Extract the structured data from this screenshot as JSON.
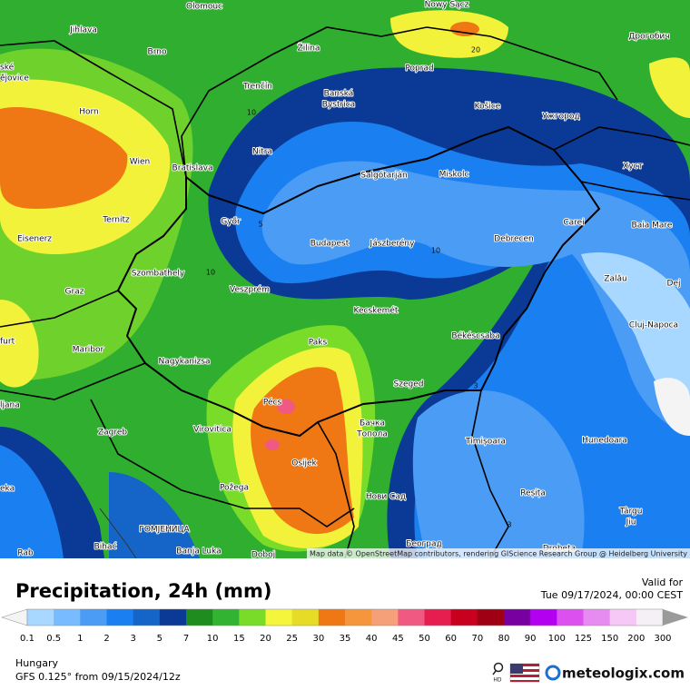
{
  "map": {
    "cities": [
      "Olomouc",
      "Nowy Sącz",
      [
        "ské",
        "ějovice"
      ],
      "Jihlava",
      "Brno",
      "Žilina",
      "Poprad",
      "Дрогобич",
      "Trenčín",
      [
        "Banská",
        "Bystrica"
      ],
      "Košice",
      "Ужгород",
      "Horn",
      "Wien",
      "Bratislava",
      "Nitra",
      "Salgótarján",
      "Miskolc",
      "Хуст",
      "Ternitz",
      "Győr",
      "Carei",
      "Baia Mare",
      "Eisenerz",
      "Budapest",
      "Jászberény",
      "Debrecen",
      "Szombathely",
      "Zalău",
      "Dej",
      "Graz",
      "Veszprém",
      "Kecskemét",
      "Cluj-Napoca",
      "furt",
      "Maribor",
      "Paks",
      "Békéscsaba",
      "Nagykanizsa",
      "Szeged",
      "ljana",
      "Pécs",
      [
        "Бачка",
        "Топола"
      ],
      "Zagreb",
      "Virovitica",
      "Timișoara",
      "Hunedoara",
      "Osijek",
      "eka",
      "Požega",
      "Нови Сад",
      "Reșița",
      [
        "Târgu",
        "Jiu"
      ],
      "ГОМЈЕНИЦА",
      "Bihać",
      "Banja Luka",
      "Doboj",
      "Београд",
      "Drobeta",
      "Rab"
    ],
    "contour_labels": [
      "20",
      "10",
      "5",
      "10",
      "10",
      "3",
      "3"
    ],
    "attribution": "Map data © OpenStreetMap contributors, rendering GIScience Research Group @ Heidelberg University"
  },
  "header": {
    "title": "Precipitation, 24h (mm)",
    "valid_label": "Valid for",
    "valid_time": "Tue 09/17/2024, 00:00 CEST"
  },
  "legend": {
    "colors": [
      "#f4f4f4",
      "#a8d8ff",
      "#78bcff",
      "#4a9cf5",
      "#1a7ff0",
      "#1565c8",
      "#0a3a96",
      "#1e8c1e",
      "#32b432",
      "#78dc28",
      "#f5f53c",
      "#e6dc28",
      "#f07814",
      "#f5963c",
      "#f5a078",
      "#f05a82",
      "#e61e50",
      "#c8001e",
      "#a00014",
      "#7800a0",
      "#b400f0",
      "#dc50f0",
      "#e68cf0",
      "#f5c8f5",
      "#f5f0f5",
      "#d8d8d8",
      "#9a9a9a"
    ],
    "ticks": [
      0.1,
      0.5,
      1,
      2,
      3,
      5,
      7,
      10,
      15,
      20,
      25,
      30,
      35,
      40,
      45,
      50,
      60,
      70,
      80,
      90,
      100,
      125,
      150,
      200,
      300
    ]
  },
  "footer": {
    "region": "Hungary",
    "model": "GFS 0.125° from 09/15/2024/12z",
    "hd": "HD",
    "logo": "meteologix.com"
  }
}
